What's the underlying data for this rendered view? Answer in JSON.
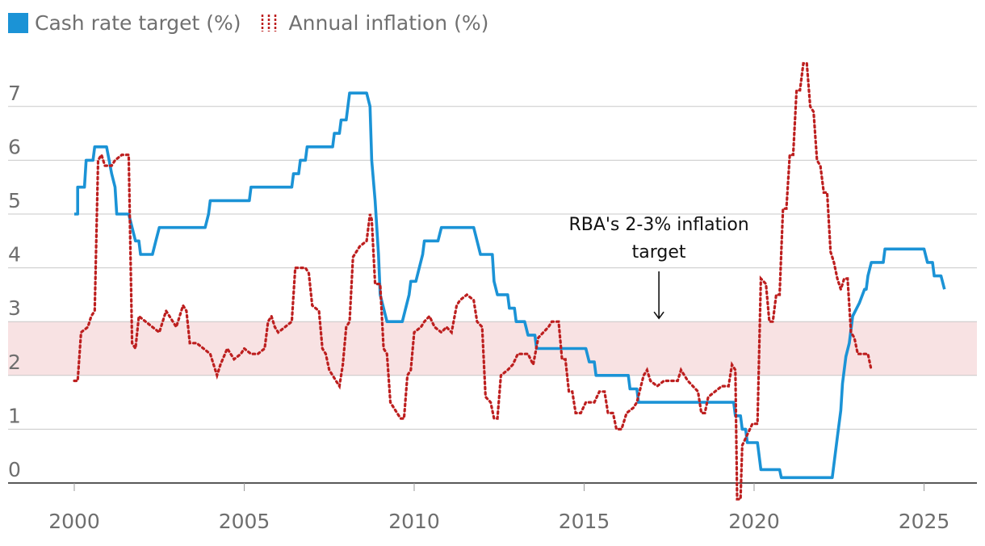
{
  "chart_data": {
    "type": "line",
    "legend": [
      {
        "name": "Cash rate target (%)",
        "color": "#1b93d6",
        "style": "solid"
      },
      {
        "name": "Annual inflation (%)",
        "color": "#bd1f1f",
        "style": "dotted"
      }
    ],
    "xlabel": "",
    "ylabel": "",
    "xlim": [
      1999.0,
      2026.65
    ],
    "ylim": [
      -0.4,
      7.9
    ],
    "x_ticks": [
      2000,
      2005,
      2010,
      2015,
      2020,
      2025
    ],
    "y_ticks": [
      0,
      1,
      2,
      3,
      4,
      5,
      6,
      7
    ],
    "grid": true,
    "band": {
      "from": 2,
      "to": 3,
      "color": "#f8e2e3"
    },
    "annotation": {
      "lines": [
        "RBA's 2-3% inflation",
        "target"
      ],
      "x": 2017.2,
      "arrow_to_y": 3.0
    },
    "series": [
      {
        "name": "Cash rate target (%)",
        "color": "#1b93d6",
        "points": [
          [
            2000.0,
            5.0
          ],
          [
            2000.1,
            5.0
          ],
          [
            2000.1,
            5.5
          ],
          [
            2000.3,
            5.5
          ],
          [
            2000.35,
            6.0
          ],
          [
            2000.55,
            6.0
          ],
          [
            2000.6,
            6.25
          ],
          [
            2000.95,
            6.25
          ],
          [
            2001.1,
            5.75
          ],
          [
            2001.2,
            5.5
          ],
          [
            2001.25,
            5.0
          ],
          [
            2001.6,
            5.0
          ],
          [
            2001.8,
            4.5
          ],
          [
            2001.9,
            4.5
          ],
          [
            2001.95,
            4.25
          ],
          [
            2002.3,
            4.25
          ],
          [
            2002.4,
            4.5
          ],
          [
            2002.5,
            4.75
          ],
          [
            2003.85,
            4.75
          ],
          [
            2003.95,
            5.0
          ],
          [
            2004.0,
            5.25
          ],
          [
            2005.15,
            5.25
          ],
          [
            2005.2,
            5.5
          ],
          [
            2006.4,
            5.5
          ],
          [
            2006.45,
            5.75
          ],
          [
            2006.6,
            5.75
          ],
          [
            2006.65,
            6.0
          ],
          [
            2006.8,
            6.0
          ],
          [
            2006.85,
            6.25
          ],
          [
            2007.6,
            6.25
          ],
          [
            2007.65,
            6.5
          ],
          [
            2007.8,
            6.5
          ],
          [
            2007.85,
            6.75
          ],
          [
            2008.0,
            6.75
          ],
          [
            2008.05,
            7.0
          ],
          [
            2008.1,
            7.25
          ],
          [
            2008.6,
            7.25
          ],
          [
            2008.7,
            7.0
          ],
          [
            2008.75,
            6.0
          ],
          [
            2008.85,
            5.25
          ],
          [
            2008.95,
            4.25
          ],
          [
            2009.0,
            3.5
          ],
          [
            2009.1,
            3.25
          ],
          [
            2009.2,
            3.0
          ],
          [
            2009.65,
            3.0
          ],
          [
            2009.75,
            3.25
          ],
          [
            2009.85,
            3.5
          ],
          [
            2009.9,
            3.75
          ],
          [
            2010.05,
            3.75
          ],
          [
            2010.15,
            4.0
          ],
          [
            2010.25,
            4.25
          ],
          [
            2010.3,
            4.5
          ],
          [
            2010.7,
            4.5
          ],
          [
            2010.8,
            4.75
          ],
          [
            2011.75,
            4.75
          ],
          [
            2011.85,
            4.5
          ],
          [
            2011.95,
            4.25
          ],
          [
            2012.3,
            4.25
          ],
          [
            2012.35,
            3.75
          ],
          [
            2012.45,
            3.5
          ],
          [
            2012.75,
            3.5
          ],
          [
            2012.8,
            3.25
          ],
          [
            2012.95,
            3.25
          ],
          [
            2013.0,
            3.0
          ],
          [
            2013.25,
            3.0
          ],
          [
            2013.35,
            2.75
          ],
          [
            2013.55,
            2.75
          ],
          [
            2013.6,
            2.5
          ],
          [
            2015.05,
            2.5
          ],
          [
            2015.15,
            2.25
          ],
          [
            2015.3,
            2.25
          ],
          [
            2015.35,
            2.0
          ],
          [
            2016.3,
            2.0
          ],
          [
            2016.35,
            1.75
          ],
          [
            2016.55,
            1.75
          ],
          [
            2016.6,
            1.5
          ],
          [
            2019.4,
            1.5
          ],
          [
            2019.45,
            1.25
          ],
          [
            2019.6,
            1.25
          ],
          [
            2019.65,
            1.0
          ],
          [
            2019.75,
            1.0
          ],
          [
            2019.8,
            0.75
          ],
          [
            2020.1,
            0.75
          ],
          [
            2020.15,
            0.5
          ],
          [
            2020.2,
            0.25
          ],
          [
            2020.75,
            0.25
          ],
          [
            2020.8,
            0.1
          ],
          [
            2022.3,
            0.1
          ],
          [
            2022.35,
            0.35
          ],
          [
            2022.45,
            0.85
          ],
          [
            2022.55,
            1.35
          ],
          [
            2022.6,
            1.85
          ],
          [
            2022.7,
            2.35
          ],
          [
            2022.8,
            2.6
          ],
          [
            2022.9,
            3.1
          ],
          [
            2023.1,
            3.35
          ],
          [
            2023.25,
            3.6
          ],
          [
            2023.3,
            3.6
          ],
          [
            2023.35,
            3.85
          ],
          [
            2023.45,
            4.1
          ],
          [
            2023.8,
            4.1
          ],
          [
            2023.85,
            4.35
          ],
          [
            2025.0,
            4.35
          ],
          [
            2025.1,
            4.1
          ],
          [
            2025.25,
            4.1
          ],
          [
            2025.3,
            3.85
          ],
          [
            2025.5,
            3.85
          ],
          [
            2025.6,
            3.6
          ]
        ]
      },
      {
        "name": "Annual inflation (%)",
        "color": "#bd1f1f",
        "points": [
          [
            2000.0,
            1.9
          ],
          [
            2000.1,
            1.9
          ],
          [
            2000.2,
            2.8
          ],
          [
            2000.4,
            2.9
          ],
          [
            2000.5,
            3.1
          ],
          [
            2000.6,
            3.2
          ],
          [
            2000.7,
            6.0
          ],
          [
            2000.8,
            6.1
          ],
          [
            2000.9,
            5.9
          ],
          [
            2001.1,
            5.9
          ],
          [
            2001.2,
            6.0
          ],
          [
            2001.4,
            6.1
          ],
          [
            2001.6,
            6.1
          ],
          [
            2001.7,
            2.6
          ],
          [
            2001.8,
            2.5
          ],
          [
            2001.9,
            3.1
          ],
          [
            2002.1,
            3.0
          ],
          [
            2002.3,
            2.9
          ],
          [
            2002.5,
            2.8
          ],
          [
            2002.7,
            3.2
          ],
          [
            2002.8,
            3.1
          ],
          [
            2002.9,
            3.0
          ],
          [
            2003.0,
            2.9
          ],
          [
            2003.2,
            3.3
          ],
          [
            2003.3,
            3.2
          ],
          [
            2003.4,
            2.6
          ],
          [
            2003.6,
            2.6
          ],
          [
            2003.8,
            2.5
          ],
          [
            2004.0,
            2.4
          ],
          [
            2004.2,
            2.0
          ],
          [
            2004.3,
            2.2
          ],
          [
            2004.5,
            2.5
          ],
          [
            2004.7,
            2.3
          ],
          [
            2004.9,
            2.4
          ],
          [
            2005.0,
            2.5
          ],
          [
            2005.2,
            2.4
          ],
          [
            2005.4,
            2.4
          ],
          [
            2005.6,
            2.5
          ],
          [
            2005.7,
            3.0
          ],
          [
            2005.8,
            3.1
          ],
          [
            2005.9,
            2.9
          ],
          [
            2006.0,
            2.8
          ],
          [
            2006.2,
            2.9
          ],
          [
            2006.4,
            3.0
          ],
          [
            2006.5,
            4.0
          ],
          [
            2006.8,
            4.0
          ],
          [
            2006.9,
            3.9
          ],
          [
            2007.0,
            3.3
          ],
          [
            2007.2,
            3.2
          ],
          [
            2007.3,
            2.5
          ],
          [
            2007.4,
            2.4
          ],
          [
            2007.5,
            2.1
          ],
          [
            2007.7,
            1.9
          ],
          [
            2007.8,
            1.8
          ],
          [
            2007.9,
            2.2
          ],
          [
            2008.0,
            2.9
          ],
          [
            2008.1,
            3.0
          ],
          [
            2008.2,
            4.2
          ],
          [
            2008.4,
            4.4
          ],
          [
            2008.6,
            4.5
          ],
          [
            2008.7,
            5.0
          ],
          [
            2008.75,
            4.9
          ],
          [
            2008.85,
            3.7
          ],
          [
            2009.0,
            3.7
          ],
          [
            2009.1,
            2.5
          ],
          [
            2009.2,
            2.4
          ],
          [
            2009.3,
            1.5
          ],
          [
            2009.4,
            1.4
          ],
          [
            2009.5,
            1.3
          ],
          [
            2009.6,
            1.2
          ],
          [
            2009.7,
            1.2
          ],
          [
            2009.8,
            2.0
          ],
          [
            2009.9,
            2.1
          ],
          [
            2010.0,
            2.8
          ],
          [
            2010.2,
            2.9
          ],
          [
            2010.3,
            3.0
          ],
          [
            2010.45,
            3.1
          ],
          [
            2010.6,
            2.9
          ],
          [
            2010.8,
            2.8
          ],
          [
            2010.95,
            2.9
          ],
          [
            2011.1,
            2.8
          ],
          [
            2011.25,
            3.3
          ],
          [
            2011.35,
            3.4
          ],
          [
            2011.55,
            3.5
          ],
          [
            2011.75,
            3.4
          ],
          [
            2011.85,
            3.0
          ],
          [
            2012.0,
            2.9
          ],
          [
            2012.1,
            1.6
          ],
          [
            2012.25,
            1.5
          ],
          [
            2012.35,
            1.2
          ],
          [
            2012.45,
            1.2
          ],
          [
            2012.55,
            2.0
          ],
          [
            2012.75,
            2.1
          ],
          [
            2012.9,
            2.2
          ],
          [
            2013.05,
            2.4
          ],
          [
            2013.2,
            2.4
          ],
          [
            2013.35,
            2.4
          ],
          [
            2013.5,
            2.2
          ],
          [
            2013.65,
            2.7
          ],
          [
            2013.8,
            2.8
          ],
          [
            2013.95,
            2.9
          ],
          [
            2014.05,
            3.0
          ],
          [
            2014.25,
            3.0
          ],
          [
            2014.35,
            2.3
          ],
          [
            2014.45,
            2.3
          ],
          [
            2014.55,
            1.7
          ],
          [
            2014.65,
            1.7
          ],
          [
            2014.75,
            1.3
          ],
          [
            2014.9,
            1.3
          ],
          [
            2015.05,
            1.5
          ],
          [
            2015.3,
            1.5
          ],
          [
            2015.45,
            1.7
          ],
          [
            2015.6,
            1.7
          ],
          [
            2015.7,
            1.3
          ],
          [
            2015.85,
            1.3
          ],
          [
            2015.95,
            1.0
          ],
          [
            2016.1,
            1.0
          ],
          [
            2016.25,
            1.3
          ],
          [
            2016.45,
            1.4
          ],
          [
            2016.55,
            1.5
          ],
          [
            2016.75,
            2.0
          ],
          [
            2016.85,
            2.1
          ],
          [
            2016.95,
            1.9
          ],
          [
            2017.15,
            1.8
          ],
          [
            2017.35,
            1.9
          ],
          [
            2017.55,
            1.9
          ],
          [
            2017.75,
            1.9
          ],
          [
            2017.85,
            2.1
          ],
          [
            2017.95,
            2.0
          ],
          [
            2018.05,
            1.9
          ],
          [
            2018.2,
            1.8
          ],
          [
            2018.35,
            1.7
          ],
          [
            2018.45,
            1.3
          ],
          [
            2018.55,
            1.3
          ],
          [
            2018.65,
            1.6
          ],
          [
            2018.85,
            1.7
          ],
          [
            2019.05,
            1.8
          ],
          [
            2019.25,
            1.8
          ],
          [
            2019.35,
            2.2
          ],
          [
            2019.45,
            2.1
          ],
          [
            2019.5,
            -0.3
          ],
          [
            2019.6,
            -0.3
          ],
          [
            2019.65,
            0.7
          ],
          [
            2019.8,
            0.9
          ],
          [
            2019.95,
            1.1
          ],
          [
            2020.1,
            1.1
          ],
          [
            2020.2,
            3.8
          ],
          [
            2020.35,
            3.7
          ],
          [
            2020.45,
            3.0
          ],
          [
            2020.55,
            3.0
          ],
          [
            2020.65,
            3.5
          ],
          [
            2020.75,
            3.5
          ],
          [
            2020.85,
            5.1
          ],
          [
            2020.95,
            5.1
          ],
          [
            2021.05,
            6.1
          ],
          [
            2021.15,
            6.1
          ],
          [
            2021.25,
            7.3
          ],
          [
            2021.35,
            7.3
          ],
          [
            2021.45,
            7.8
          ],
          [
            2021.55,
            7.8
          ],
          [
            2021.65,
            7.0
          ],
          [
            2021.75,
            6.9
          ],
          [
            2021.85,
            6.0
          ],
          [
            2021.95,
            5.9
          ],
          [
            2022.05,
            5.4
          ],
          [
            2022.15,
            5.4
          ],
          [
            2022.25,
            4.3
          ],
          [
            2022.35,
            4.1
          ],
          [
            2022.45,
            3.8
          ],
          [
            2022.55,
            3.6
          ],
          [
            2022.65,
            3.8
          ],
          [
            2022.75,
            3.8
          ],
          [
            2022.85,
            2.8
          ],
          [
            2022.95,
            2.7
          ],
          [
            2023.05,
            2.4
          ],
          [
            2023.25,
            2.4
          ],
          [
            2023.35,
            2.4
          ],
          [
            2023.45,
            2.1
          ]
        ]
      }
    ]
  }
}
